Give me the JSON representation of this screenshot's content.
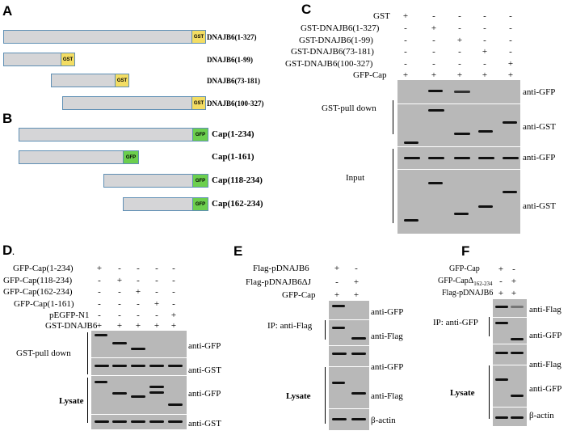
{
  "panel_letters": {
    "a": "A",
    "b": "B",
    "c": "C",
    "d": "D",
    "d_suffix": ".",
    "e": "E",
    "f": "F"
  },
  "panel_a": {
    "tag": "GST",
    "constructs": [
      "DNAJB6(1-327)",
      "DNAJB6(1-99)",
      "DNAJB6(73-181)",
      "DNAJB6(100-327)"
    ]
  },
  "panel_b": {
    "tag": "GFP",
    "constructs": [
      "Cap(1-234)",
      "Cap(1-161)",
      "Cap(118-234)",
      "Cap(162-234)"
    ]
  },
  "panel_c": {
    "conditions": [
      {
        "label": "GST",
        "signs": [
          "+",
          "-",
          "-",
          "-",
          "-"
        ]
      },
      {
        "label": "GST-DNAJB6(1-327)",
        "signs": [
          "-",
          "+",
          "-",
          "-",
          "-"
        ]
      },
      {
        "label": "GST-DNAJB6(1-99)",
        "signs": [
          "-",
          "-",
          "+",
          "-",
          "-"
        ]
      },
      {
        "label": "GST-DNAJB6(73-181)",
        "signs": [
          "-",
          "-",
          "-",
          "+",
          "-"
        ]
      },
      {
        "label": "GST-DNAJB6(100-327)",
        "signs": [
          "-",
          "-",
          "-",
          "-",
          "+"
        ]
      },
      {
        "label": "GFP-Cap",
        "signs": [
          "+",
          "+",
          "+",
          "+",
          "+"
        ]
      }
    ],
    "sections": [
      "GST-pull down",
      "Input"
    ],
    "antibodies": [
      "anti-GFP",
      "anti-GST",
      "anti-GFP",
      "anti-GST"
    ]
  },
  "panel_d": {
    "conditions": [
      {
        "label": "GFP-Cap(1-234)",
        "signs": [
          "+",
          "-",
          "-",
          "-",
          "-"
        ]
      },
      {
        "label": "GFP-Cap(118-234)",
        "signs": [
          "-",
          "+",
          "-",
          "-",
          "-"
        ]
      },
      {
        "label": "GFP-Cap(162-234)",
        "signs": [
          "-",
          "-",
          "+",
          "-",
          "-"
        ]
      },
      {
        "label": "GFP-Cap(1-161)",
        "signs": [
          "-",
          "-",
          "-",
          "+",
          "-"
        ]
      },
      {
        "label": "pEGFP-N1",
        "signs": [
          "-",
          "-",
          "-",
          "-",
          "+"
        ]
      },
      {
        "label": "GST-DNAJB6",
        "signs": [
          "+",
          "+",
          "+",
          "+",
          "+"
        ]
      }
    ],
    "sections": [
      "GST-pull down",
      "Lysate"
    ],
    "antibodies": [
      "anti-GFP",
      "anti-GST",
      "anti-GFP",
      "anti-GST"
    ]
  },
  "panel_e": {
    "conditions": [
      {
        "label": "Flag-pDNAJB6",
        "signs": [
          "+",
          "-"
        ]
      },
      {
        "label": "Flag-pDNAJB6ΔJ",
        "signs": [
          "-",
          "+"
        ]
      },
      {
        "label": "GFP-Cap",
        "signs": [
          "+",
          "+"
        ]
      }
    ],
    "sections": [
      "IP: anti-Flag",
      "Lysate"
    ],
    "antibodies": [
      "anti-GFP",
      "anti-Flag",
      "anti-GFP",
      "anti-Flag",
      "β-actin"
    ]
  },
  "panel_f": {
    "conditions": [
      {
        "label": "GFP-Cap",
        "signs": [
          "+",
          "-"
        ]
      },
      {
        "label": "GFP-CapΔ",
        "sub": "162-234",
        "signs": [
          "-",
          "+"
        ]
      },
      {
        "label": "Flag-pDNAJB6",
        "signs": [
          "+",
          "+"
        ]
      }
    ],
    "sections": [
      "IP: anti-GFP",
      "Lysate"
    ],
    "antibodies": [
      "anti-Flag",
      "anti-GFP",
      "anti-Flag",
      "anti-GFP",
      "β-actin"
    ]
  },
  "colors": {
    "gst_tag": "#f3dd63",
    "gfp_tag": "#6ccf4e",
    "construct_fill": "#d5d5d7",
    "construct_border": "#5f8fb4",
    "blot": "#b8b8b8"
  }
}
